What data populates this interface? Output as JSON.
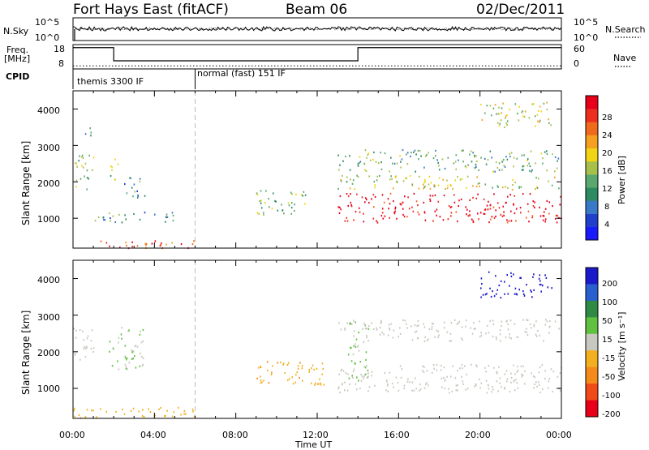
{
  "header": {
    "title_left": "Fort Hays East (fitACF)",
    "title_mid": "Beam 06",
    "title_right": "02/Dec/2011"
  },
  "noise_panel": {
    "left_label": "N.Sky",
    "right_label": "N.Search",
    "left_ticks": [
      "10^5",
      "10^0"
    ],
    "right_ticks": [
      "10^5",
      "10^0"
    ]
  },
  "freq_panel": {
    "left_label_line1": "Freq.",
    "left_label_line2": "[MHz]",
    "right_label": "Nave",
    "left_ticks": [
      "18",
      "8"
    ],
    "right_ticks": [
      "60",
      "0"
    ]
  },
  "cpid_panel": {
    "label": "CPID",
    "programs": [
      {
        "name": "themis 3300 IF",
        "start": "00:00"
      },
      {
        "name": "normal (fast) 151 IF",
        "start": "06:00"
      }
    ]
  },
  "power_panel": {
    "ylabel": "Slant Range [km]",
    "yticks": [
      "1000",
      "2000",
      "3000",
      "4000"
    ],
    "colorbar_label": "Power [dB]",
    "colorbar_ticks": [
      "4",
      "8",
      "12",
      "16",
      "20",
      "24",
      "28"
    ],
    "colors": [
      "#1a1aff",
      "#1f3fcc",
      "#3a78c8",
      "#2e8a60",
      "#5aa86e",
      "#a7c04a",
      "#f2d417",
      "#f5a021",
      "#f06a1c",
      "#ee2e1e",
      "#e8001a"
    ]
  },
  "velocity_panel": {
    "ylabel": "Slant Range [km]",
    "yticks": [
      "1000",
      "2000",
      "3000",
      "4000"
    ],
    "colorbar_label": "Velocity [m s⁻¹]",
    "colorbar_ticks": [
      "200",
      "100",
      "50",
      "15",
      "-15",
      "-50",
      "-100",
      "-200"
    ],
    "colors": [
      "#1a1acc",
      "#2a5fd0",
      "#2e8a45",
      "#60c040",
      "#c8c8c0",
      "#f2b020",
      "#f58a1a",
      "#f04a18",
      "#e8001a"
    ]
  },
  "xaxis": {
    "label": "Time UT",
    "ticks": [
      "00:00",
      "04:00",
      "08:00",
      "12:00",
      "16:00",
      "20:00",
      "00:00"
    ]
  },
  "chart_data": {
    "type": "heatmap",
    "title": "Fort Hays East (fitACF) Beam 06 02/Dec/2011",
    "xlabel": "Time UT",
    "ylabel": "Slant Range [km]",
    "xlim": [
      "00:00",
      "24:00"
    ],
    "ylim": [
      180,
      4500
    ],
    "noise": {
      "left_axis": "N.Sky",
      "right_axis": "N.Search",
      "approx_level": "10^5 scale, near top throughout"
    },
    "frequency": [
      {
        "start": "00:00",
        "end": "02:00",
        "freq_mhz": 17.5
      },
      {
        "start": "02:00",
        "end": "14:00",
        "freq_mhz": 11.0
      },
      {
        "start": "14:00",
        "end": "24:00",
        "freq_mhz": 17.5
      }
    ],
    "nave_approx": 8,
    "cpid": [
      {
        "start": "00:00",
        "end": "06:00",
        "program": "themis 3300 IF"
      },
      {
        "start": "06:00",
        "end": "24:00",
        "program": "normal (fast) 151 IF"
      }
    ],
    "power_db_echo_regions": [
      {
        "start": "00:00",
        "end": "01:00",
        "range_km": [
          1800,
          2800
        ],
        "power_db": 14
      },
      {
        "start": "00:30",
        "end": "01:00",
        "range_km": [
          3200,
          3600
        ],
        "power_db": 8
      },
      {
        "start": "01:45",
        "end": "02:15",
        "range_km": [
          2000,
          2700
        ],
        "power_db": 14
      },
      {
        "start": "02:30",
        "end": "03:30",
        "range_km": [
          1500,
          2200
        ],
        "power_db": 10
      },
      {
        "start": "00:00",
        "end": "06:00",
        "range_km": [
          200,
          400
        ],
        "power_db": 24
      },
      {
        "start": "01:00",
        "end": "05:00",
        "range_km": [
          900,
          1200
        ],
        "power_db": 10
      },
      {
        "start": "09:00",
        "end": "11:30",
        "range_km": [
          1100,
          1800
        ],
        "power_db": 14
      },
      {
        "start": "13:00",
        "end": "24:00",
        "range_km": [
          900,
          1700
        ],
        "power_db": 28
      },
      {
        "start": "13:00",
        "end": "24:00",
        "range_km": [
          1800,
          2200
        ],
        "power_db": 16
      },
      {
        "start": "13:00",
        "end": "24:00",
        "range_km": [
          2300,
          2900
        ],
        "power_db": 12
      },
      {
        "start": "20:00",
        "end": "23:30",
        "range_km": [
          3500,
          4200
        ],
        "power_db": 16
      }
    ],
    "velocity_echo_regions": [
      {
        "start": "00:00",
        "end": "01:00",
        "range_km": [
          1800,
          2800
        ],
        "velocity_ms": 0
      },
      {
        "start": "01:45",
        "end": "03:30",
        "range_km": [
          1500,
          2700
        ],
        "velocity_ms": 40
      },
      {
        "start": "00:00",
        "end": "06:00",
        "range_km": [
          200,
          500
        ],
        "velocity_ms": -30
      },
      {
        "start": "09:00",
        "end": "12:30",
        "range_km": [
          1100,
          1800
        ],
        "velocity_ms": -40
      },
      {
        "start": "13:30",
        "end": "14:30",
        "range_km": [
          1200,
          2900
        ],
        "velocity_ms": 40
      },
      {
        "start": "13:00",
        "end": "24:00",
        "range_km": [
          900,
          1700
        ],
        "velocity_ms": 0
      },
      {
        "start": "13:00",
        "end": "24:00",
        "range_km": [
          2300,
          2900
        ],
        "velocity_ms": 0
      },
      {
        "start": "20:00",
        "end": "23:30",
        "range_km": [
          3500,
          4200
        ],
        "velocity_ms": 200
      }
    ]
  }
}
